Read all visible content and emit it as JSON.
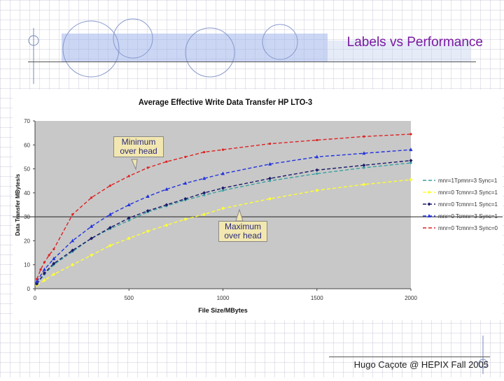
{
  "slide": {
    "title": "Labels vs Performance",
    "footer": "Hugo Caçote @ HEPIX Fall 2005"
  },
  "callouts": {
    "minimum": "Minimum over head",
    "maximum": "Maximum over head"
  },
  "chart_data": {
    "type": "line",
    "title": "Average Effective Write Data Transfer HP LTO-3",
    "xlabel": "File Size/MBytes",
    "ylabel": "Data Transfer MBytes/s",
    "xlim": [
      0,
      2000
    ],
    "ylim": [
      0,
      70
    ],
    "xticks": [
      0,
      500,
      1000,
      1500,
      2000
    ],
    "yticks": [
      0,
      10,
      20,
      30,
      40,
      50,
      60,
      70
    ],
    "grid": false,
    "reference_line_y": 30,
    "legend_position": "right",
    "series": [
      {
        "name": "mnr=1Tpmnr=3 Sync=1",
        "color": "#3aa0a0",
        "marker": "none",
        "x": [
          10,
          50,
          100,
          200,
          300,
          400,
          500,
          600,
          700,
          800,
          900,
          1000,
          1250,
          1500,
          1750,
          2000
        ],
        "y": [
          2,
          6,
          10,
          15.5,
          21,
          25,
          28.5,
          32,
          34.5,
          37,
          39,
          41,
          45,
          48,
          50.5,
          52.5
        ]
      },
      {
        "name": "mnr=0 Tcmnr=3 Sync=1",
        "color": "#ffff33",
        "marker": "diamond",
        "x": [
          10,
          50,
          100,
          200,
          300,
          400,
          500,
          600,
          700,
          800,
          900,
          1000,
          1250,
          1500,
          1750,
          2000
        ],
        "y": [
          1.5,
          3.5,
          6,
          10,
          14,
          18,
          21,
          24,
          26.5,
          29,
          31,
          33.5,
          37.5,
          41,
          43.5,
          45.5
        ]
      },
      {
        "name": "mnr=0 Tcmnr=1 Sync=1",
        "color": "#1a1a6a",
        "marker": "diamond",
        "x": [
          10,
          50,
          100,
          200,
          300,
          400,
          500,
          600,
          700,
          800,
          900,
          1000,
          1250,
          1500,
          1750,
          2000
        ],
        "y": [
          2,
          6.5,
          10.5,
          16,
          21,
          25.5,
          29.5,
          32.5,
          35,
          37.5,
          40,
          42,
          46,
          49.5,
          51.5,
          53.5
        ]
      },
      {
        "name": "mnr=0 Tcmnr=3 Sync=1",
        "color": "#2233dd",
        "marker": "triangle",
        "x": [
          10,
          50,
          100,
          200,
          300,
          400,
          500,
          600,
          700,
          800,
          900,
          1000,
          1250,
          1500,
          1750,
          2000
        ],
        "y": [
          3,
          8,
          12.5,
          20,
          26,
          31,
          35,
          38.5,
          41.5,
          44,
          46,
          48,
          52,
          55,
          56.5,
          58
        ]
      },
      {
        "name": "mnr=0 Tcmnr=3 Sync=0",
        "color": "#dd2222",
        "marker": "none",
        "x": [
          10,
          30,
          50,
          75,
          100,
          200,
          300,
          400,
          500,
          600,
          700,
          800,
          900,
          1000,
          1250,
          1500,
          1750,
          2000
        ],
        "y": [
          4,
          8,
          11,
          14,
          16.5,
          31,
          38,
          43,
          47,
          50.5,
          53,
          55,
          57,
          58,
          60.5,
          62,
          63.5,
          64.5
        ]
      }
    ]
  }
}
